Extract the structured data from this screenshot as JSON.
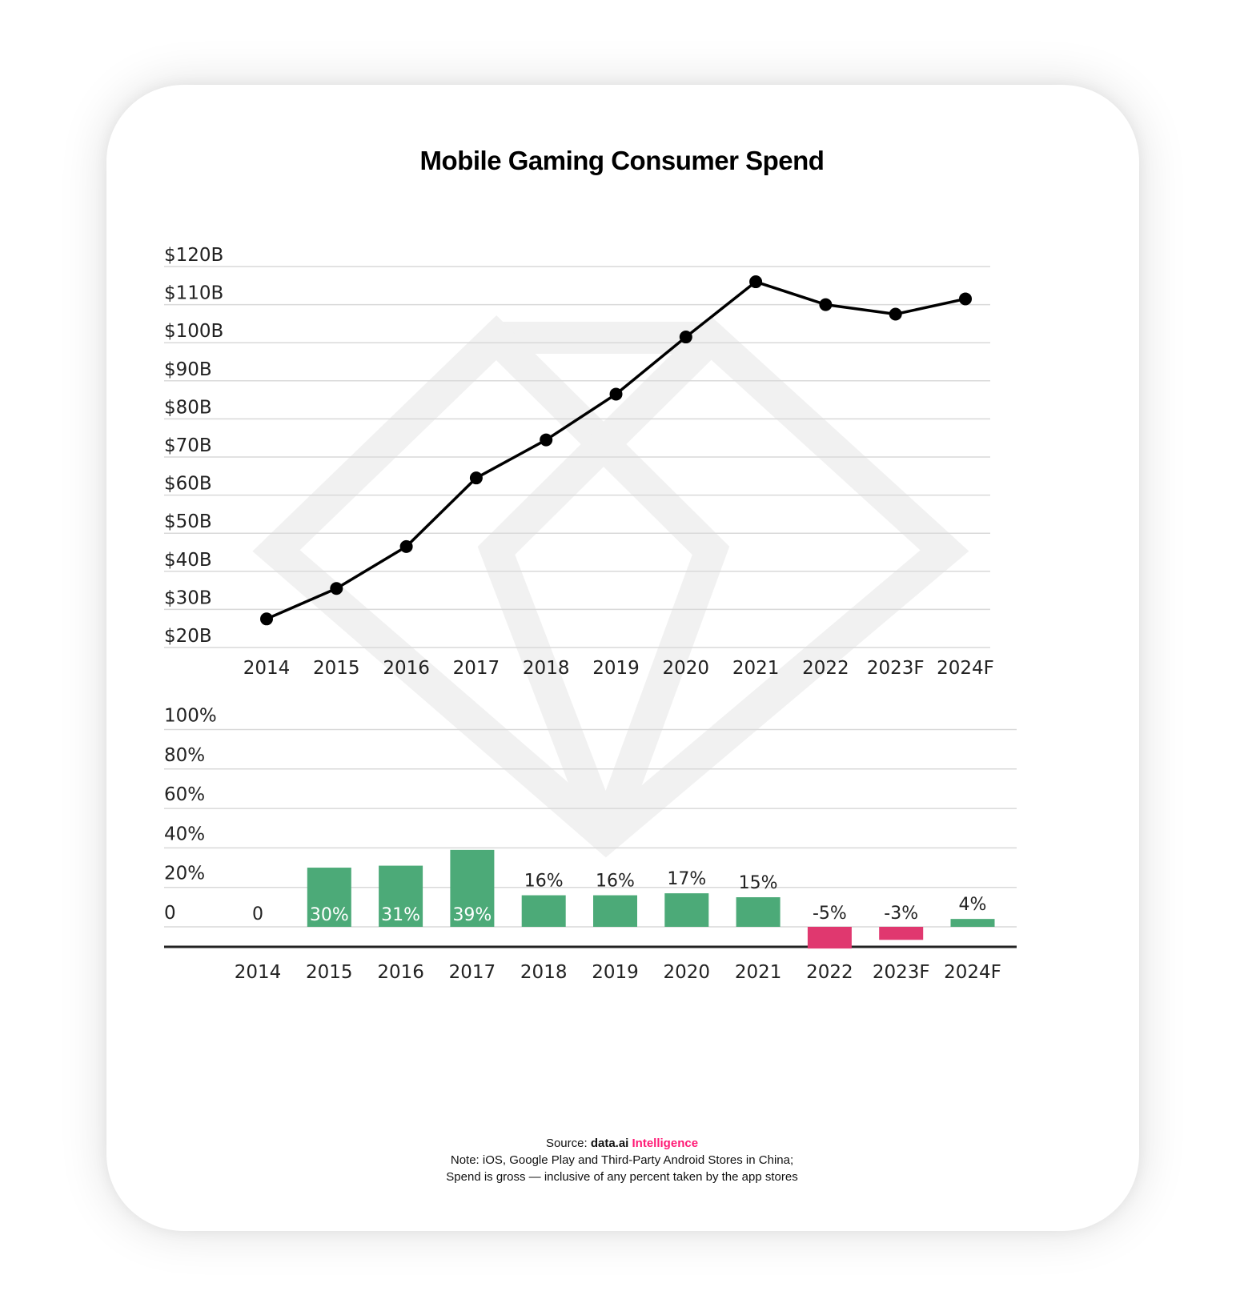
{
  "colors": {
    "line": "#000000",
    "bar_positive": "#4caa78",
    "bar_negative": "#e0386f",
    "grid": "#d9d9d9",
    "watermark": "#f1f1f1",
    "accent": "#ff1a75"
  },
  "chart_data": [
    {
      "type": "line",
      "title": "Mobile Gaming Consumer Spend",
      "x": [
        "2014",
        "2015",
        "2016",
        "2017",
        "2018",
        "2019",
        "2020",
        "2021",
        "2022",
        "2023F",
        "2024F"
      ],
      "series": [
        {
          "values": [
            27.5,
            35.5,
            46.5,
            64.5,
            74.5,
            86.5,
            101.5,
            116.0,
            110.0,
            107.5,
            111.5
          ]
        }
      ],
      "ylim": [
        20,
        120
      ],
      "yticks": [
        120,
        110,
        100,
        90,
        80,
        70,
        60,
        50,
        40,
        30,
        20
      ],
      "ytick_labels": [
        "$120B",
        "$110B",
        "$100B",
        "$90B",
        "$80B",
        "$70B",
        "$60B",
        "$50B",
        "$40B",
        "$30B",
        "$20B"
      ],
      "grid": true
    },
    {
      "type": "bar",
      "categories": [
        "2014",
        "2015",
        "2016",
        "2017",
        "2018",
        "2019",
        "2020",
        "2021",
        "2022",
        "2023F",
        "2024F"
      ],
      "values": [
        0,
        30,
        31,
        39,
        16,
        16,
        17,
        15,
        -5,
        -3,
        4
      ],
      "data_labels": [
        "0",
        "30%",
        "31%",
        "39%",
        "16%",
        "16%",
        "17%",
        "15%",
        "-5%",
        "-3%",
        "4%"
      ],
      "ylim": [
        0,
        100
      ],
      "yticks": [
        100,
        80,
        60,
        40,
        20,
        0
      ],
      "ytick_labels": [
        "100%",
        "80%",
        "60%",
        "40%",
        "20%",
        "0"
      ],
      "grid": true
    }
  ],
  "footer": {
    "source_prefix": "Source:",
    "source_brand": "data.ai",
    "source_accent": "Intelligence",
    "note_line1": "Note: iOS, Google Play and Third-Party Android Stores in China;",
    "note_line2": "Spend is gross — inclusive of any percent taken by the app stores"
  }
}
